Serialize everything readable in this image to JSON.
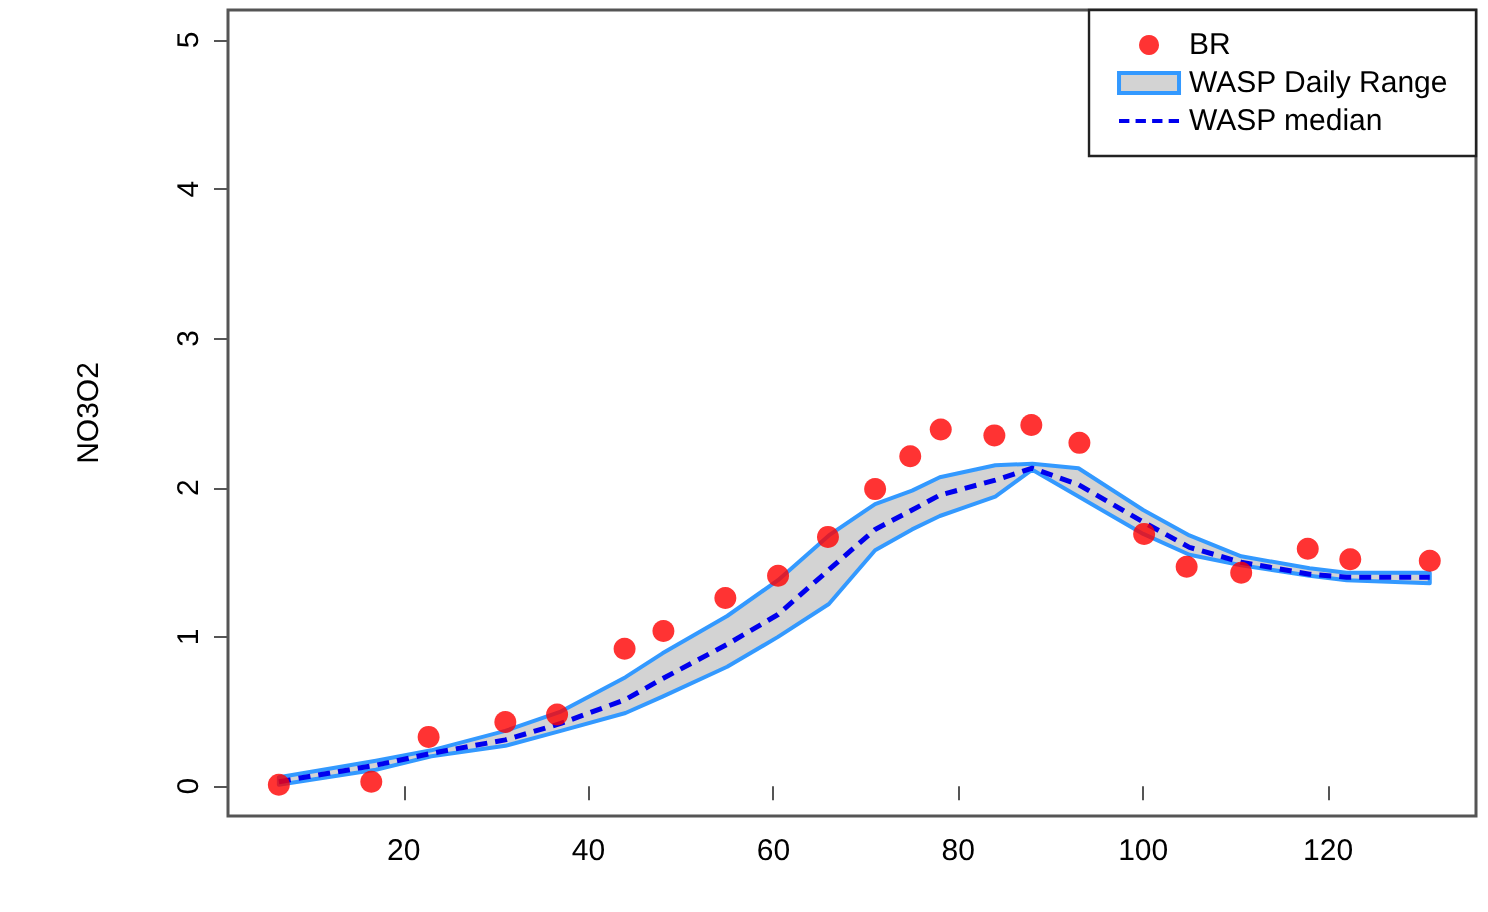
{
  "chart_data": {
    "type": "line",
    "ylabel": "NO3O2",
    "xlim": [
      1,
      136
    ],
    "xticks": [
      20,
      40,
      60,
      80,
      100,
      120
    ],
    "ylim": [
      -0.2,
      5.2
    ],
    "yticks": [
      0,
      1,
      2,
      3,
      4,
      5
    ],
    "grid": false,
    "legend": "top right",
    "series": [
      {
        "name": "BR",
        "type": "scatter",
        "marker": "circle",
        "color": "#ff0000",
        "x": [
          6.5,
          16.5,
          22.7,
          31,
          36.6,
          43.9,
          48.1,
          54.8,
          60.5,
          65.9,
          71,
          74.8,
          78.1,
          83.9,
          87.9,
          93.1,
          100.1,
          104.7,
          110.6,
          117.8,
          122.4,
          131
        ],
        "values": [
          0.01,
          0.03,
          0.33,
          0.43,
          0.48,
          0.92,
          1.04,
          1.26,
          1.41,
          1.67,
          1.99,
          2.21,
          2.39,
          2.35,
          2.42,
          2.3,
          1.69,
          1.47,
          1.43,
          1.59,
          1.52,
          1.51
        ]
      },
      {
        "name": "WASP Daily Range",
        "type": "area",
        "color": "#3399ff",
        "values": [
          null,
          null,
          null,
          null,
          null,
          null,
          null,
          null,
          null,
          null,
          null,
          null,
          null,
          null,
          null,
          null,
          null,
          null,
          null,
          null,
          null,
          null
        ],
        "x": [
          6.5,
          17,
          23,
          31,
          37,
          44,
          48,
          55,
          60.5,
          66,
          71,
          75,
          78,
          84,
          88,
          93,
          100,
          105,
          110.6,
          118,
          122,
          131
        ],
        "upper": [
          0.06,
          0.17,
          0.24,
          0.37,
          0.5,
          0.73,
          0.89,
          1.14,
          1.38,
          1.68,
          1.89,
          1.98,
          2.07,
          2.15,
          2.16,
          2.13,
          1.85,
          1.68,
          1.54,
          1.46,
          1.43,
          1.43
        ],
        "lower": [
          0.01,
          0.11,
          0.2,
          0.27,
          0.37,
          0.49,
          0.6,
          0.8,
          1.0,
          1.22,
          1.58,
          1.72,
          1.81,
          1.94,
          2.12,
          1.94,
          1.69,
          1.55,
          1.48,
          1.41,
          1.38,
          1.36
        ]
      },
      {
        "name": "WASP median",
        "line_style": "dashed",
        "marker": "none",
        "color": "#0000ee",
        "x": [
          6.5,
          17,
          23,
          31,
          37,
          44,
          48,
          55,
          60.5,
          66,
          71,
          75,
          78,
          84,
          88,
          93,
          100,
          105,
          110.6,
          118,
          122,
          131
        ],
        "values": [
          0.03,
          0.14,
          0.22,
          0.31,
          0.42,
          0.58,
          0.72,
          0.95,
          1.15,
          1.45,
          1.72,
          1.85,
          1.95,
          2.05,
          2.13,
          2.02,
          1.77,
          1.6,
          1.5,
          1.42,
          1.4,
          1.4
        ]
      }
    ]
  }
}
